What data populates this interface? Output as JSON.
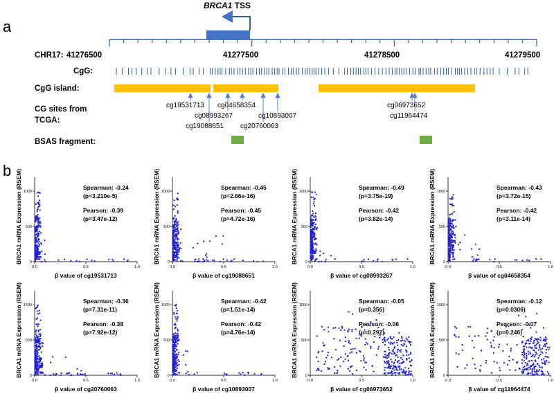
{
  "panel_a": {
    "label": "a",
    "tss_gene": "BRCA1",
    "tss_suffix": " TSS",
    "chr_label": "CHR17:",
    "coordinates": [
      "41276500",
      "41277500",
      "41278500",
      "41279500"
    ],
    "cpg_label": "CgG:",
    "island_label": "CgG island:",
    "tcga_label_line1": "CG sites from",
    "tcga_label_line2": "TCGA:",
    "bsas_label": "BSAS fragment:",
    "cg_sites": [
      "cg19531713",
      "cg19088651",
      "cg08993267",
      "cg04658354",
      "cg20760063",
      "cg10893007",
      "cg06973652",
      "cg11964474"
    ]
  },
  "panel_b": {
    "label": "b",
    "ylabel": "BRCA1 mRNA Expression (RSEM)",
    "xlabel_prefix": "β value of ",
    "xticks": [
      "0.0",
      "0.5",
      "1.0"
    ],
    "yticks": [
      "0",
      "500",
      "1000"
    ]
  },
  "chart_data": [
    {
      "type": "scatter",
      "title": "cg19531713",
      "xlabel": "β value of cg19531713",
      "ylabel": "BRCA1 mRNA Expression (RSEM)",
      "xlim": [
        0,
        1
      ],
      "ylim": [
        0,
        1100
      ],
      "spearman_line": "Spearman: -0.24",
      "spearman_p": "(p=3.210e-5)",
      "pearson_line": "Pearson: -0.39",
      "pearson_p": "(p=3.47e-12)",
      "pattern": "low",
      "spread": 0.06,
      "seed": 11
    },
    {
      "type": "scatter",
      "title": "cg19088651",
      "xlabel": "β value of cg19088651",
      "ylabel": "BRCA1 mRNA Expression (RSEM)",
      "xlim": [
        0,
        1
      ],
      "ylim": [
        0,
        1100
      ],
      "spearman_line": "Spearman: -0.45",
      "spearman_p": "(p=2.66e-16)",
      "pearson_line": "Pearson: -0.45",
      "pearson_p": "(p=4.72e-16)",
      "pattern": "low",
      "spread": 0.22,
      "seed": 23
    },
    {
      "type": "scatter",
      "title": "cg08993267",
      "xlabel": "β value of cg08993267",
      "ylabel": "BRCA1 mRNA Expression (RSEM)",
      "xlim": [
        0,
        1
      ],
      "ylim": [
        0,
        1100
      ],
      "spearman_line": "Spearman: -0.49",
      "spearman_p": "(p=3.75e-19)",
      "pearson_line": "Pearson: -0.42",
      "pearson_p": "(p=3.82e-14)",
      "pattern": "low",
      "spread": 0.08,
      "seed": 37
    },
    {
      "type": "scatter",
      "title": "cg04658354",
      "xlabel": "β value of cg04658354",
      "ylabel": "BRCA1 mRNA Expression (RSEM)",
      "xlim": [
        0,
        1
      ],
      "ylim": [
        0,
        1100
      ],
      "spearman_line": "Spearman: -0.43",
      "spearman_p": "(p=3.72e-15)",
      "pearson_line": "Pearson: -0.42",
      "pearson_p": "(p=3.11e-14)",
      "pattern": "low",
      "spread": 0.12,
      "seed": 41
    },
    {
      "type": "scatter",
      "title": "cg20760063",
      "xlabel": "β value of cg20760063",
      "ylabel": "BRCA1 mRNA Expression (RSEM)",
      "xlim": [
        0,
        1
      ],
      "ylim": [
        0,
        1100
      ],
      "spearman_line": "Spearman: -0.36",
      "spearman_p": "(p=7.31e-11)",
      "pearson_line": "Pearson: -0.38",
      "pearson_p": "(p=7.92e-12)",
      "pattern": "low",
      "spread": 0.2,
      "seed": 53
    },
    {
      "type": "scatter",
      "title": "cg10893007",
      "xlabel": "β value of cg10893007",
      "ylabel": "BRCA1 mRNA Expression (RSEM)",
      "xlim": [
        0,
        1
      ],
      "ylim": [
        0,
        1100
      ],
      "spearman_line": "Spearman: -0.42",
      "spearman_p": "(p=1.51e-14)",
      "pearson_line": "Pearson: -0.42",
      "pearson_p": "(p=4.76e-14)",
      "pattern": "low",
      "spread": 0.06,
      "seed": 67
    },
    {
      "type": "scatter",
      "title": "cg06973652",
      "xlabel": "β value of cg06973652",
      "ylabel": "BRCA1 mRNA Expression (RSEM)",
      "xlim": [
        0,
        1
      ],
      "ylim": [
        0,
        1100
      ],
      "spearman_line": "Spearman: -0.05",
      "spearman_p": "(p=0.356)",
      "pearson_line": "Pearson: -0.06",
      "pearson_p": "(p=0.292)",
      "pattern": "high",
      "spread": 0.55,
      "seed": 79
    },
    {
      "type": "scatter",
      "title": "cg11964474",
      "xlabel": "β value of cg11964474",
      "ylabel": "BRCA1 mRNA Expression (RSEM)",
      "xlim": [
        0,
        1
      ],
      "ylim": [
        0,
        1100
      ],
      "spearman_line": "Spearman: -0.12",
      "spearman_p": "(p=0.0306)",
      "pearson_line": "Pearson: -0.07",
      "pearson_p": "(p=0.246)",
      "pattern": "high",
      "spread": 0.3,
      "seed": 97
    }
  ],
  "colors": {
    "track_blue": "#2e5fa8",
    "tss_box": "#4472c4",
    "island": "#ffc000",
    "bsas": "#70ad47",
    "points": "#1f1fe0",
    "arrow": "#5b7fbf"
  }
}
